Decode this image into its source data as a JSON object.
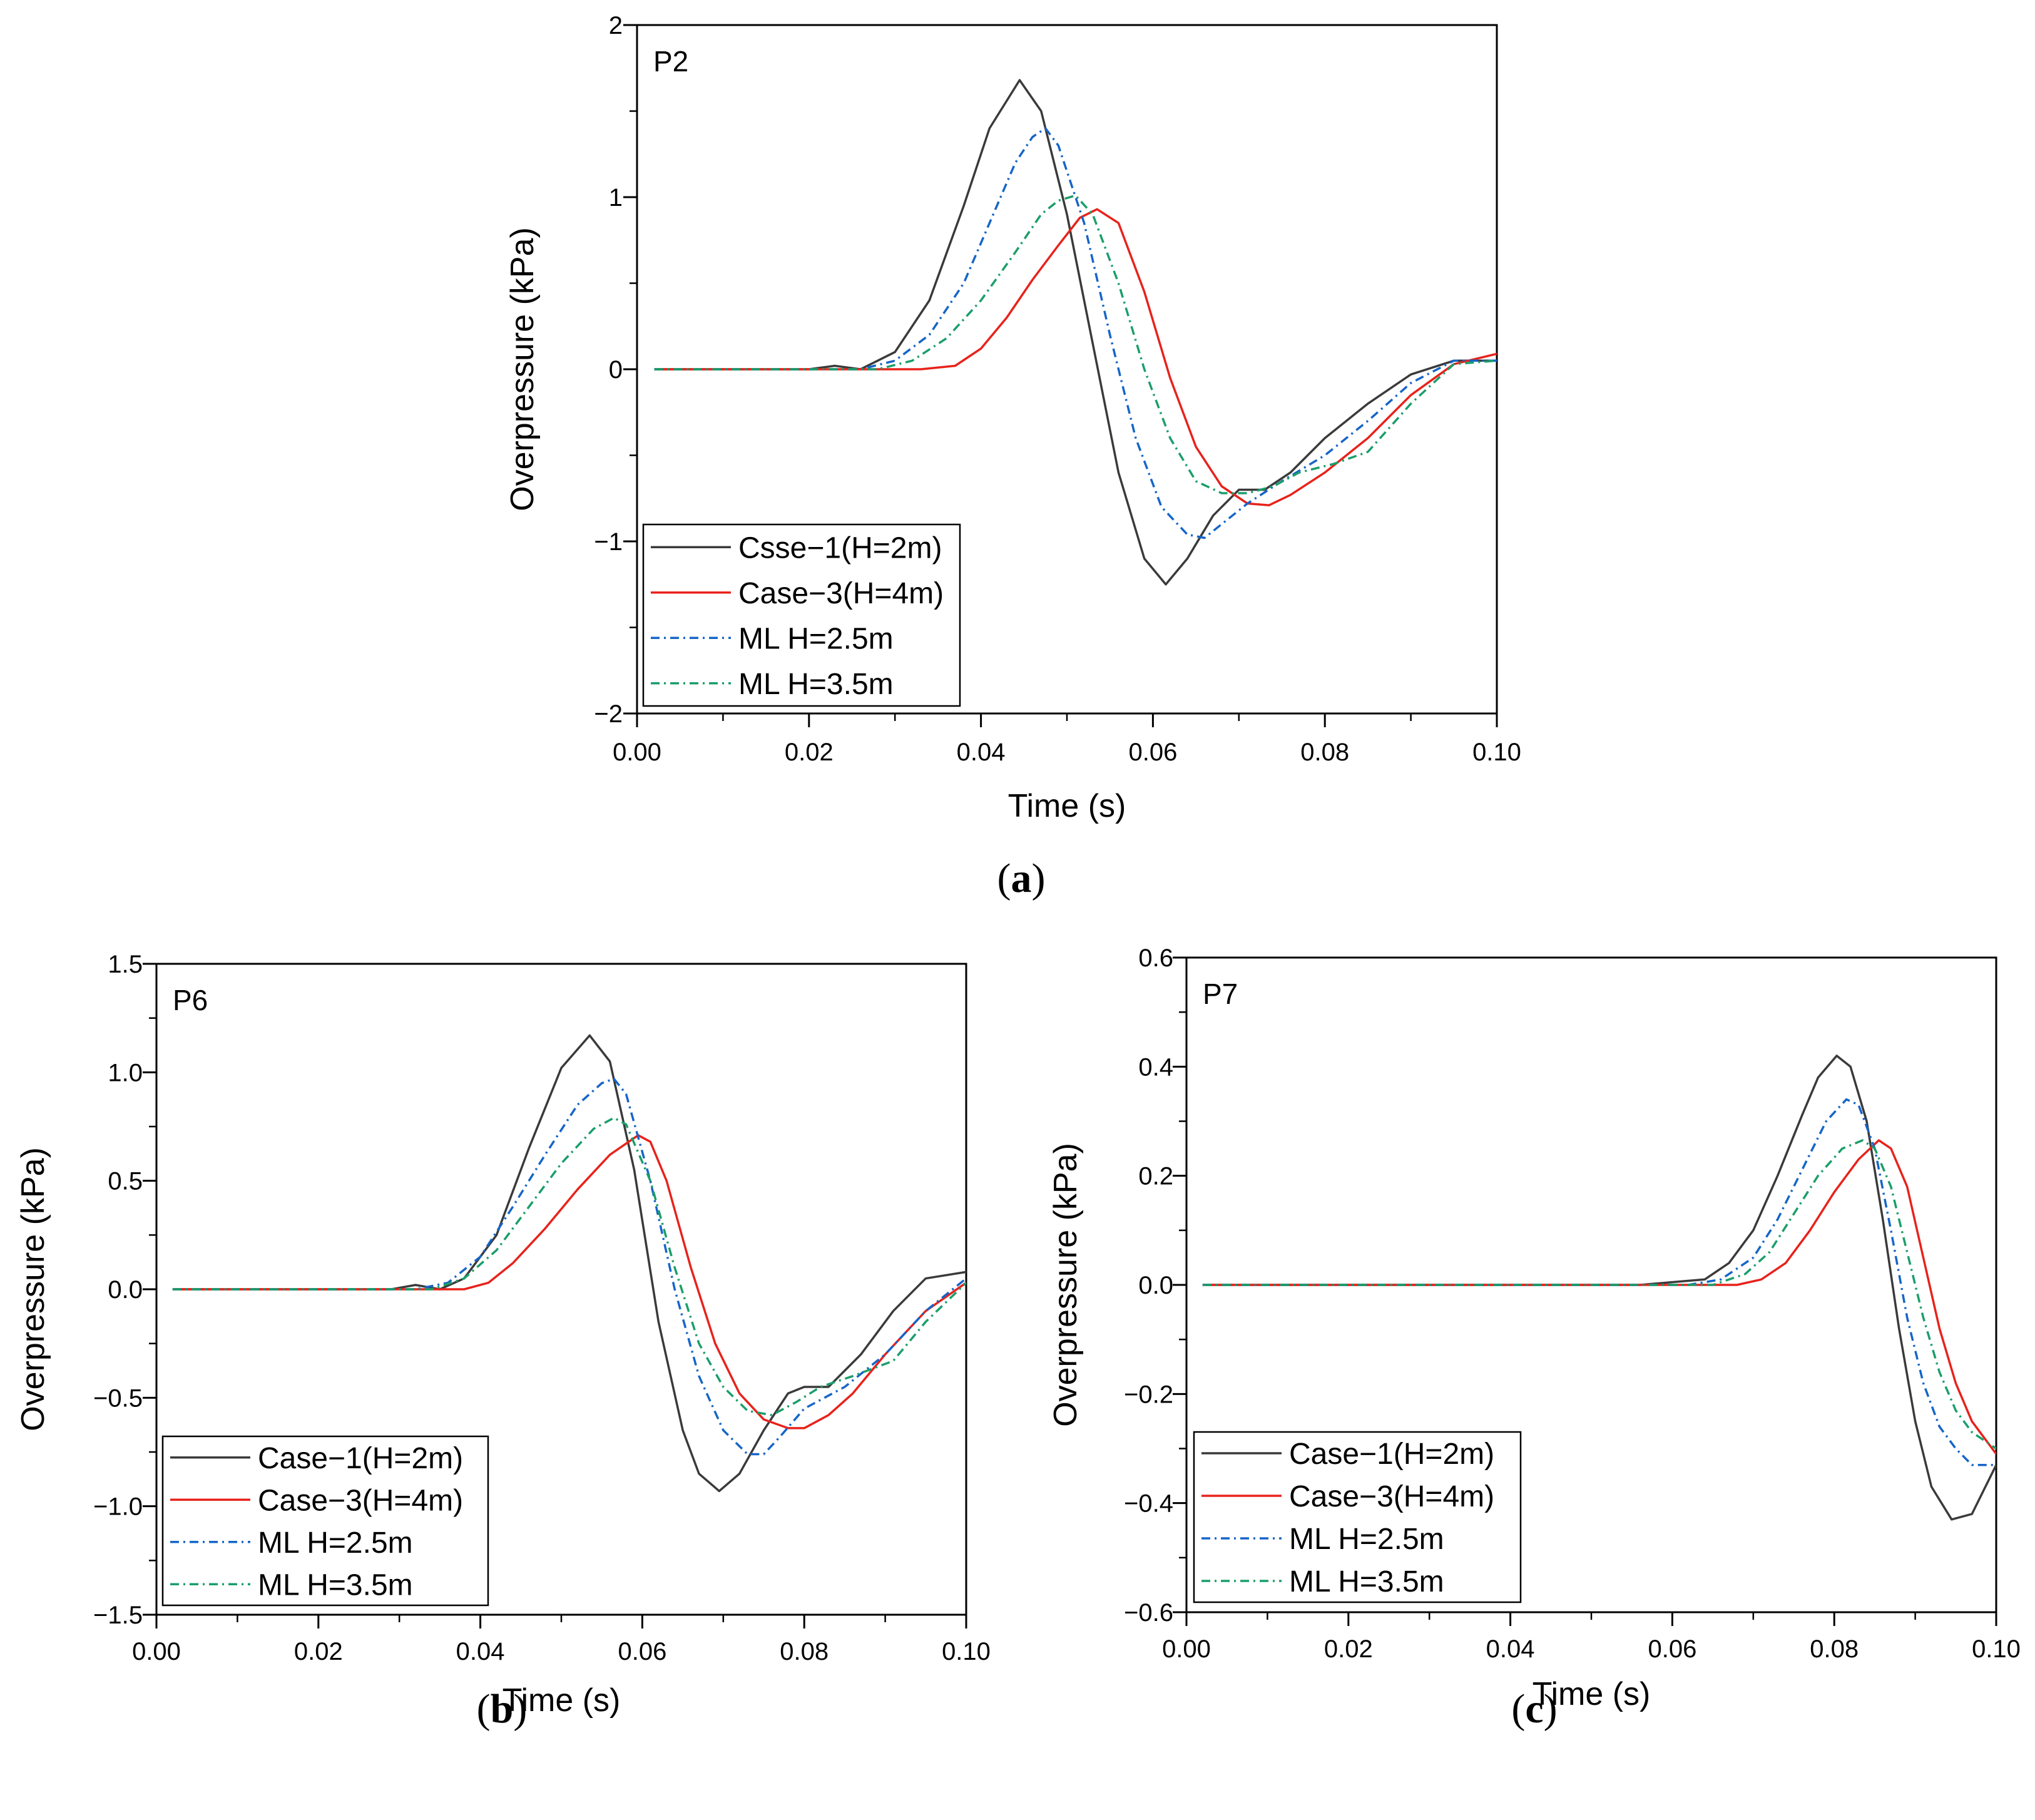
{
  "chart_data": [
    {
      "type": "line",
      "panel_id": "a",
      "caption_letter": "a",
      "panel_label": "P2",
      "xlabel": "Time (s)",
      "ylabel": "Overpressure (kPa)",
      "xlim": [
        0.0,
        0.1
      ],
      "ylim": [
        -2,
        2
      ],
      "xticks": [
        0.0,
        0.02,
        0.04,
        0.06,
        0.08,
        0.1
      ],
      "xtick_labels": [
        "0.00",
        "0.02",
        "0.04",
        "0.06",
        "0.08",
        "0.10"
      ],
      "yticks": [
        -2,
        -1,
        0,
        1,
        2
      ],
      "ytick_labels": [
        "−2",
        "−1",
        "0",
        "1",
        "2"
      ],
      "legend_position": "bottom-left",
      "series": [
        {
          "name": "Csse−1(H=2m)",
          "color": "#3a3a3a",
          "style": "solid",
          "x": [
            0.002,
            0.02,
            0.023,
            0.026,
            0.03,
            0.034,
            0.038,
            0.041,
            0.0445,
            0.047,
            0.05,
            0.053,
            0.056,
            0.059,
            0.0615,
            0.064,
            0.067,
            0.07,
            0.073,
            0.076,
            0.08,
            0.085,
            0.09,
            0.095,
            0.1
          ],
          "y": [
            0,
            0,
            0.02,
            0,
            0.1,
            0.4,
            0.95,
            1.4,
            1.68,
            1.5,
            0.9,
            0.15,
            -0.6,
            -1.1,
            -1.25,
            -1.1,
            -0.85,
            -0.7,
            -0.7,
            -0.6,
            -0.4,
            -0.2,
            -0.03,
            0.05,
            0.05
          ]
        },
        {
          "name": "Case−3(H=4m)",
          "color": "#e8221b",
          "style": "solid",
          "x": [
            0.002,
            0.033,
            0.037,
            0.04,
            0.043,
            0.046,
            0.049,
            0.0515,
            0.0535,
            0.056,
            0.059,
            0.062,
            0.065,
            0.068,
            0.071,
            0.0735,
            0.076,
            0.08,
            0.085,
            0.09,
            0.095,
            0.1
          ],
          "y": [
            0,
            0,
            0.02,
            0.12,
            0.3,
            0.52,
            0.72,
            0.88,
            0.93,
            0.85,
            0.45,
            -0.05,
            -0.45,
            -0.68,
            -0.78,
            -0.79,
            -0.73,
            -0.6,
            -0.4,
            -0.15,
            0.03,
            0.09
          ]
        },
        {
          "name": "ML H=2.5m",
          "color": "#1565c8",
          "style": "dashdot",
          "x": [
            0.002,
            0.026,
            0.03,
            0.034,
            0.038,
            0.041,
            0.044,
            0.046,
            0.0475,
            0.049,
            0.052,
            0.055,
            0.058,
            0.061,
            0.064,
            0.066,
            0.068,
            0.071,
            0.075,
            0.08,
            0.085,
            0.09,
            0.095,
            0.1
          ],
          "y": [
            0,
            0,
            0.05,
            0.2,
            0.5,
            0.85,
            1.2,
            1.35,
            1.4,
            1.3,
            0.85,
            0.2,
            -0.4,
            -0.8,
            -0.96,
            -0.98,
            -0.9,
            -0.78,
            -0.65,
            -0.5,
            -0.3,
            -0.08,
            0.05,
            0.05
          ]
        },
        {
          "name": "ML H=3.5m",
          "color": "#1a9e6a",
          "style": "dashdot",
          "x": [
            0.002,
            0.028,
            0.032,
            0.036,
            0.04,
            0.044,
            0.047,
            0.049,
            0.051,
            0.053,
            0.056,
            0.059,
            0.062,
            0.065,
            0.068,
            0.071,
            0.074,
            0.077,
            0.081,
            0.085,
            0.09,
            0.095,
            0.1
          ],
          "y": [
            0,
            0,
            0.05,
            0.18,
            0.4,
            0.68,
            0.9,
            0.98,
            1.01,
            0.9,
            0.5,
            0.0,
            -0.4,
            -0.65,
            -0.72,
            -0.72,
            -0.68,
            -0.6,
            -0.55,
            -0.48,
            -0.2,
            0.03,
            0.05
          ]
        }
      ]
    },
    {
      "type": "line",
      "panel_id": "b",
      "caption_letter": "b",
      "panel_label": "P6",
      "xlabel": "Time (s)",
      "ylabel": "Overpressure (kPa)",
      "xlim": [
        0.0,
        0.1
      ],
      "ylim": [
        -1.5,
        1.5
      ],
      "xticks": [
        0.0,
        0.02,
        0.04,
        0.06,
        0.08,
        0.1
      ],
      "xtick_labels": [
        "0.00",
        "0.02",
        "0.04",
        "0.06",
        "0.08",
        "0.10"
      ],
      "yticks": [
        -1.5,
        -1.0,
        -0.5,
        0.0,
        0.5,
        1.0,
        1.5
      ],
      "ytick_labels": [
        "−1.5",
        "−1.0",
        "−0.5",
        "0.0",
        "0.5",
        "1.0",
        "1.5"
      ],
      "legend_position": "bottom-left",
      "series": [
        {
          "name": "Case−1(H=2m)",
          "color": "#3a3a3a",
          "style": "solid",
          "x": [
            0.002,
            0.029,
            0.032,
            0.035,
            0.038,
            0.042,
            0.046,
            0.05,
            0.0535,
            0.056,
            0.059,
            0.062,
            0.065,
            0.067,
            0.0695,
            0.072,
            0.075,
            0.078,
            0.08,
            0.083,
            0.087,
            0.091,
            0.095,
            0.1
          ],
          "y": [
            0,
            0,
            0.02,
            0,
            0.05,
            0.25,
            0.65,
            1.02,
            1.17,
            1.05,
            0.55,
            -0.15,
            -0.65,
            -0.85,
            -0.93,
            -0.85,
            -0.65,
            -0.48,
            -0.45,
            -0.45,
            -0.3,
            -0.1,
            0.05,
            0.08
          ]
        },
        {
          "name": "Case−3(H=4m)",
          "color": "#e8221b",
          "style": "solid",
          "x": [
            0.002,
            0.038,
            0.041,
            0.044,
            0.048,
            0.052,
            0.056,
            0.0595,
            0.061,
            0.063,
            0.066,
            0.069,
            0.072,
            0.075,
            0.078,
            0.08,
            0.083,
            0.086,
            0.09,
            0.095,
            0.1
          ],
          "y": [
            0,
            0,
            0.03,
            0.12,
            0.28,
            0.46,
            0.62,
            0.71,
            0.68,
            0.5,
            0.1,
            -0.25,
            -0.48,
            -0.6,
            -0.64,
            -0.64,
            -0.58,
            -0.48,
            -0.3,
            -0.1,
            0.03
          ]
        },
        {
          "name": "ML H=2.5m",
          "color": "#1565c8",
          "style": "dashdot",
          "x": [
            0.002,
            0.032,
            0.036,
            0.04,
            0.044,
            0.048,
            0.052,
            0.055,
            0.0565,
            0.058,
            0.061,
            0.064,
            0.067,
            0.07,
            0.073,
            0.075,
            0.077,
            0.08,
            0.085,
            0.09,
            0.095,
            0.1
          ],
          "y": [
            0,
            0,
            0.03,
            0.15,
            0.38,
            0.62,
            0.85,
            0.95,
            0.97,
            0.9,
            0.5,
            0.0,
            -0.4,
            -0.65,
            -0.76,
            -0.76,
            -0.68,
            -0.55,
            -0.45,
            -0.3,
            -0.1,
            0.05
          ]
        },
        {
          "name": "ML H=3.5m",
          "color": "#1a9e6a",
          "style": "dashdot",
          "x": [
            0.002,
            0.034,
            0.038,
            0.042,
            0.046,
            0.05,
            0.054,
            0.0565,
            0.058,
            0.061,
            0.064,
            0.067,
            0.07,
            0.073,
            0.076,
            0.079,
            0.082,
            0.086,
            0.091,
            0.095,
            0.1
          ],
          "y": [
            0,
            0,
            0.05,
            0.18,
            0.38,
            0.58,
            0.74,
            0.79,
            0.76,
            0.5,
            0.1,
            -0.25,
            -0.45,
            -0.56,
            -0.58,
            -0.52,
            -0.45,
            -0.4,
            -0.33,
            -0.15,
            0.03
          ]
        }
      ]
    },
    {
      "type": "line",
      "panel_id": "c",
      "caption_letter": "c",
      "panel_label": "P7",
      "xlabel": "Time (s)",
      "ylabel": "Overpressure (kPa)",
      "xlim": [
        0.0,
        0.1
      ],
      "ylim": [
        -0.6,
        0.6
      ],
      "xticks": [
        0.0,
        0.02,
        0.04,
        0.06,
        0.08,
        0.1
      ],
      "xtick_labels": [
        "0.00",
        "0.02",
        "0.04",
        "0.06",
        "0.08",
        "0.10"
      ],
      "yticks": [
        -0.6,
        -0.4,
        -0.2,
        0.0,
        0.2,
        0.4,
        0.6
      ],
      "ytick_labels": [
        "−0.6",
        "−0.4",
        "−0.2",
        "0.0",
        "0.2",
        "0.4",
        "0.6"
      ],
      "legend_position": "bottom-left",
      "series": [
        {
          "name": "Case−1(H=2m)",
          "color": "#3a3a3a",
          "style": "solid",
          "x": [
            0.002,
            0.056,
            0.06,
            0.064,
            0.067,
            0.07,
            0.073,
            0.076,
            0.078,
            0.0803,
            0.082,
            0.084,
            0.086,
            0.088,
            0.09,
            0.092,
            0.0945,
            0.097,
            0.1
          ],
          "y": [
            0,
            0,
            0.005,
            0.01,
            0.04,
            0.1,
            0.2,
            0.31,
            0.38,
            0.42,
            0.4,
            0.3,
            0.12,
            -0.08,
            -0.25,
            -0.37,
            -0.43,
            -0.42,
            -0.33
          ]
        },
        {
          "name": "Case−3(H=4m)",
          "color": "#e8221b",
          "style": "solid",
          "x": [
            0.002,
            0.068,
            0.071,
            0.074,
            0.077,
            0.08,
            0.083,
            0.0855,
            0.087,
            0.089,
            0.091,
            0.093,
            0.095,
            0.097,
            0.1
          ],
          "y": [
            0,
            0,
            0.01,
            0.04,
            0.1,
            0.17,
            0.23,
            0.265,
            0.25,
            0.18,
            0.05,
            -0.08,
            -0.18,
            -0.25,
            -0.31
          ]
        },
        {
          "name": "ML H=2.5m",
          "color": "#1565c8",
          "style": "dashdot",
          "x": [
            0.002,
            0.062,
            0.066,
            0.07,
            0.073,
            0.076,
            0.079,
            0.0815,
            0.083,
            0.085,
            0.087,
            0.089,
            0.091,
            0.093,
            0.095,
            0.097,
            0.1
          ],
          "y": [
            0,
            0,
            0.01,
            0.05,
            0.12,
            0.21,
            0.3,
            0.34,
            0.33,
            0.25,
            0.1,
            -0.06,
            -0.18,
            -0.26,
            -0.3,
            -0.33,
            -0.33
          ]
        },
        {
          "name": "ML H=3.5m",
          "color": "#1a9e6a",
          "style": "dashdot",
          "x": [
            0.002,
            0.065,
            0.069,
            0.072,
            0.075,
            0.078,
            0.081,
            0.0835,
            0.085,
            0.087,
            0.089,
            0.091,
            0.093,
            0.095,
            0.097,
            0.1
          ],
          "y": [
            0,
            0,
            0.02,
            0.06,
            0.13,
            0.2,
            0.25,
            0.265,
            0.25,
            0.18,
            0.06,
            -0.06,
            -0.16,
            -0.23,
            -0.27,
            -0.3
          ]
        }
      ]
    }
  ]
}
